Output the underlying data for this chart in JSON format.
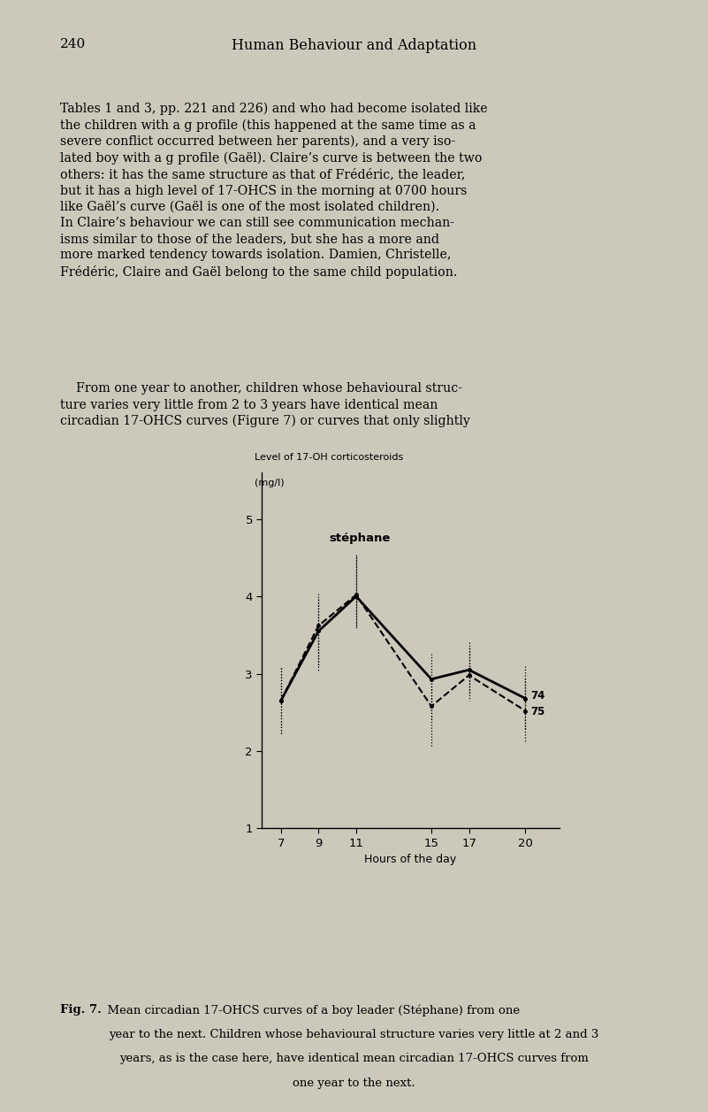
{
  "page_number": "240",
  "header": "Human Behaviour and Adaptation",
  "ylabel_line1": "Level of 17-OH corticosteroids",
  "ylabel_line2": "(mg/l)",
  "xlabel": "Hours of the day",
  "x_ticks": [
    7,
    9,
    11,
    15,
    17,
    20
  ],
  "ylim": [
    1.0,
    5.6
  ],
  "xlim": [
    6.0,
    21.8
  ],
  "yticks": [
    1,
    2,
    3,
    4,
    5
  ],
  "curve_74_y": [
    2.65,
    3.55,
    4.0,
    2.93,
    3.05,
    2.68
  ],
  "curve_75_y": [
    2.65,
    3.62,
    4.02,
    2.58,
    2.98,
    2.52
  ],
  "err_74_upper": [
    0.42,
    0.42,
    0.52,
    0.33,
    0.36,
    0.42
  ],
  "err_74_lower": [
    0.42,
    0.52,
    0.42,
    0.52,
    0.33,
    0.42
  ],
  "err_75_upper": [
    0.42,
    0.42,
    0.52,
    0.33,
    0.36,
    0.42
  ],
  "err_75_lower": [
    0.42,
    0.52,
    0.42,
    0.52,
    0.33,
    0.42
  ],
  "label_74": "74",
  "label_75": "75",
  "name_label": "stéphane",
  "bg_color": "#ccc9bb",
  "text_color": "#000000",
  "body_text_1": "Tables 1 and 3, pp. 221 and 226) and who had become isolated like\nthe children with a g profile (this happened at the same time as a\nsevere conflict occurred between her parents), and a very iso-\nlated boy with a g profile (Gaël). Claire’s curve is between the two\nothers: it has the same structure as that of Frédéric, the leader,\nbut it has a high level of 17-OHCS in the morning at 0700 hours\nlike Gaël’s curve (Gaël is one of the most isolated children).\nIn Claire’s behaviour we can still see communication mechan-\nisms similar to those of the leaders, but she has a more and\nmore marked tendency towards isolation. Damien, Christelle,\nFrédéric, Claire and Gaël belong to the same child population.",
  "body_text_2": "    From one year to another, children whose behavioural struc-\nture varies very little from 2 to 3 years have identical mean\ncircadian 17-OHCS curves (Figure 7) or curves that only slightly",
  "caption_bold": "Fig. 7.",
  "caption_rest": "  Mean circadian 17-OHCS curves of a boy leader (Stéphane) from one\nyear to the next. Children whose behavioural structure varies very little at 2 and 3\nyears, as is the case here, have identical mean circadian 17-OHCS curves from\none year to the next."
}
